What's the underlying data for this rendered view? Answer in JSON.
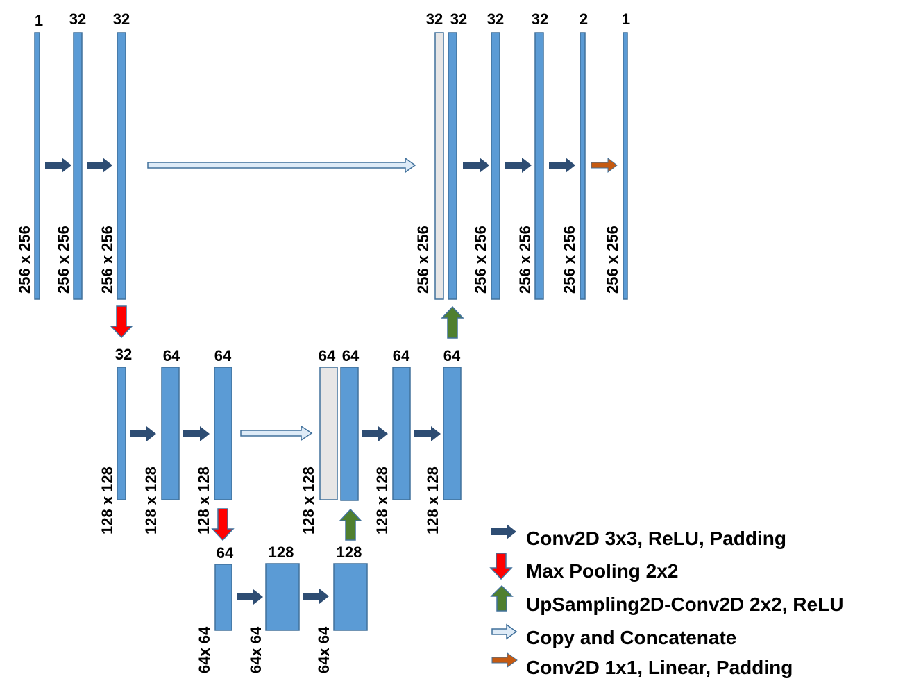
{
  "colors": {
    "feature_map": "#5B9BD5",
    "feature_map_border": "#41719C",
    "copied_map": "#E7E6E6",
    "conv_arrow": "#2E4D73",
    "pool_arrow": "#FF0000",
    "up_arrow": "#4F7F2F",
    "copy_arrow": "#DEEBF7",
    "linear_arrow": "#C55A11"
  },
  "level1": {
    "channels": [
      "1",
      "32",
      "32",
      "32",
      "32",
      "32",
      "32",
      "2",
      "1"
    ],
    "sizes": [
      "256 x 256",
      "256 x 256",
      "256 x 256",
      "256 x 256",
      "256 x 256",
      "256 x 256",
      "256 x 256",
      "256 x 256"
    ]
  },
  "level2": {
    "channels": [
      "32",
      "64",
      "64",
      "64",
      "64",
      "64",
      "64"
    ],
    "sizes": [
      "128 x 128",
      "128 x 128",
      "128 x 128",
      "128 x 128",
      "128 x 128",
      "128 x 128"
    ]
  },
  "level3": {
    "channels": [
      "64",
      "128",
      "128"
    ],
    "sizes": [
      "64x 64",
      "64x 64",
      "64x 64"
    ]
  },
  "legend": {
    "conv3x3": "Conv2D 3x3, ReLU, Padding",
    "maxpool": "Max Pooling 2x2",
    "upsample": "UpSampling2D-Conv2D 2x2, ReLU",
    "copy": "Copy and Concatenate",
    "conv1x1": "Conv2D 1x1, Linear, Padding"
  }
}
